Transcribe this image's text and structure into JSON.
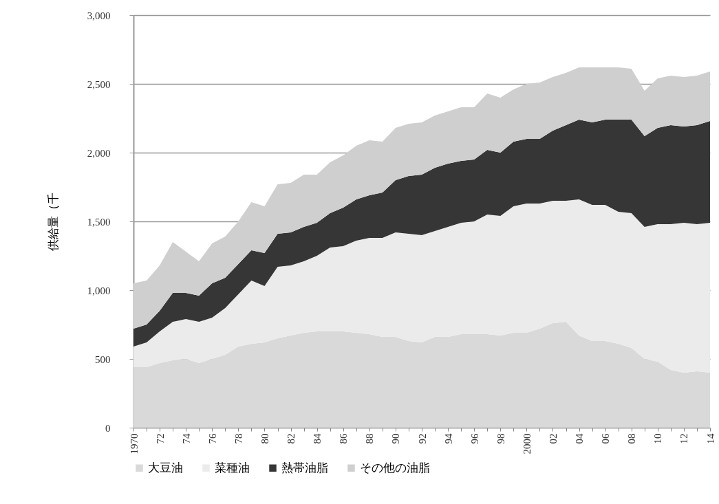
{
  "chart_data": {
    "type": "area",
    "stacked": true,
    "ylabel": "供給量（千",
    "categories": [
      "1970",
      null,
      "72",
      null,
      "74",
      null,
      "76",
      null,
      "78",
      null,
      "80",
      null,
      "82",
      null,
      "84",
      null,
      "86",
      null,
      "88",
      null,
      "90",
      null,
      "92",
      null,
      "94",
      null,
      "96",
      null,
      "98",
      null,
      "2000",
      null,
      "02",
      null,
      "04",
      null,
      "06",
      null,
      "08",
      null,
      "10",
      null,
      "12",
      null,
      "14"
    ],
    "series": [
      {
        "name": "大豆油",
        "color": "#d9d9d9",
        "values": [
          440,
          440,
          470,
          490,
          500,
          470,
          500,
          530,
          590,
          610,
          620,
          650,
          670,
          690,
          700,
          700,
          700,
          690,
          680,
          660,
          660,
          630,
          620,
          660,
          660,
          680,
          680,
          680,
          670,
          690,
          690,
          720,
          760,
          770,
          670,
          630,
          630,
          610,
          580,
          500,
          480,
          420,
          400,
          410,
          400
        ]
      },
      {
        "name": "菜種油",
        "color": "#ebebeb",
        "values": [
          150,
          180,
          230,
          280,
          290,
          300,
          300,
          340,
          380,
          460,
          410,
          520,
          510,
          520,
          550,
          610,
          620,
          670,
          700,
          720,
          760,
          780,
          780,
          770,
          800,
          810,
          820,
          870,
          870,
          920,
          940,
          910,
          890,
          880,
          990,
          990,
          990,
          960,
          980,
          960,
          1000,
          1060,
          1090,
          1070,
          1090
        ]
      },
      {
        "name": "熱帯油脂",
        "color": "#363636",
        "values": [
          130,
          130,
          150,
          210,
          190,
          190,
          250,
          220,
          220,
          220,
          240,
          240,
          240,
          250,
          240,
          250,
          280,
          300,
          310,
          330,
          380,
          420,
          440,
          460,
          460,
          450,
          450,
          470,
          460,
          470,
          470,
          470,
          510,
          550,
          580,
          600,
          620,
          670,
          680,
          660,
          700,
          720,
          700,
          720,
          740
        ]
      },
      {
        "name": "その他の油脂",
        "color": "#cfcfcf",
        "values": [
          330,
          320,
          330,
          370,
          300,
          250,
          290,
          300,
          310,
          350,
          340,
          360,
          360,
          380,
          350,
          370,
          380,
          390,
          400,
          370,
          380,
          380,
          380,
          380,
          380,
          390,
          380,
          410,
          400,
          380,
          400,
          410,
          390,
          380,
          380,
          400,
          380,
          380,
          370,
          330,
          360,
          360,
          360,
          360,
          360
        ]
      }
    ],
    "ylim": [
      0,
      3000
    ],
    "yticks": [
      {
        "value": 0,
        "label": "0"
      },
      {
        "value": 500,
        "label": "500"
      },
      {
        "value": 1000,
        "label": "1,000"
      },
      {
        "value": 1500,
        "label": "1,500"
      },
      {
        "value": 2000,
        "label": "2,000"
      },
      {
        "value": 2500,
        "label": "2,500"
      },
      {
        "value": 3000,
        "label": "3,000"
      }
    ],
    "grid": "y",
    "legend": "bottom"
  }
}
